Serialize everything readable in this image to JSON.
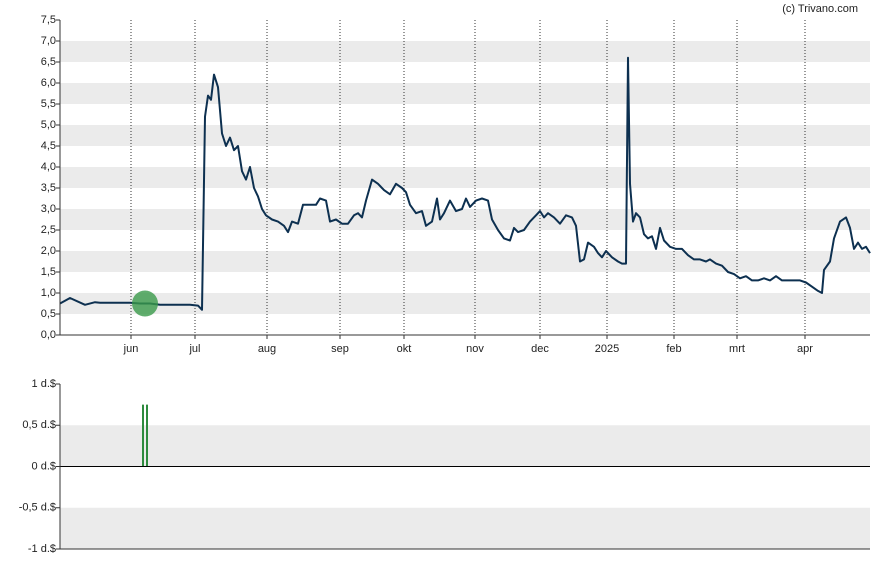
{
  "credit": "(c) Trivano.com",
  "chart_data": [
    {
      "type": "line",
      "xlim": [
        0,
        405
      ],
      "xticks": [
        {
          "value": 35.5,
          "label": "jun"
        },
        {
          "value": 67.5,
          "label": "jul"
        },
        {
          "value": 103.5,
          "label": "aug"
        },
        {
          "value": 140,
          "label": "sep"
        },
        {
          "value": 172,
          "label": "okt"
        },
        {
          "value": 207.5,
          "label": "nov"
        },
        {
          "value": 240,
          "label": "dec"
        },
        {
          "value": 273.5,
          "label": "2025"
        },
        {
          "value": 307,
          "label": "feb"
        },
        {
          "value": 338.5,
          "label": "mrt"
        },
        {
          "value": 372.5,
          "label": "apr"
        }
      ],
      "ylim": [
        0,
        7.5
      ],
      "yticks": [
        {
          "value": 0,
          "label": "0,0"
        },
        {
          "value": 0.5,
          "label": "0,5"
        },
        {
          "value": 1,
          "label": "1,0"
        },
        {
          "value": 1.5,
          "label": "1,5"
        },
        {
          "value": 2,
          "label": "2,0"
        },
        {
          "value": 2.5,
          "label": "2,5"
        },
        {
          "value": 3,
          "label": "3,0"
        },
        {
          "value": 3.5,
          "label": "3,5"
        },
        {
          "value": 4,
          "label": "4,0"
        },
        {
          "value": 4.5,
          "label": "4,5"
        },
        {
          "value": 5,
          "label": "5,0"
        },
        {
          "value": 5.5,
          "label": "5,5"
        },
        {
          "value": 6,
          "label": "6,0"
        },
        {
          "value": 6.5,
          "label": "6,5"
        },
        {
          "value": 7,
          "label": "7,0"
        },
        {
          "value": 7.5,
          "label": "7,5"
        }
      ],
      "grid": true,
      "x": [
        0,
        5,
        12.5,
        17.5,
        20,
        27.5,
        35,
        40,
        45,
        50,
        57.5,
        65,
        69,
        71,
        72.5,
        74,
        75.5,
        77,
        79,
        81,
        83,
        85,
        87,
        89,
        91,
        93,
        95,
        97,
        99,
        101,
        103,
        106,
        109,
        112,
        114,
        116,
        119,
        121.5,
        125,
        128,
        130,
        133,
        135,
        138,
        141,
        144,
        147,
        149,
        151,
        153,
        156,
        159,
        162,
        165,
        168,
        171,
        173,
        175,
        178,
        181,
        183,
        186,
        188.5,
        190,
        192,
        195,
        198,
        201,
        203,
        205,
        208,
        211,
        214,
        216,
        219,
        222,
        225,
        227,
        229,
        232,
        235,
        238,
        240,
        242,
        244,
        247,
        250,
        253,
        256,
        258,
        260,
        262,
        264,
        267,
        269,
        271,
        273,
        276,
        279,
        281,
        283,
        284,
        285,
        286.5,
        288,
        290,
        292,
        294,
        296,
        298,
        300,
        302,
        305,
        308,
        311,
        314,
        317,
        320,
        323,
        325,
        328,
        331,
        334,
        337,
        340,
        343,
        346,
        349,
        352,
        355,
        358,
        361,
        364,
        367,
        370,
        373,
        376,
        379,
        381,
        382,
        385,
        387,
        390,
        393,
        395,
        397,
        399,
        401,
        403,
        405
      ],
      "series": [
        {
          "color": "#0d3050",
          "values": [
            0.75,
            0.88,
            0.72,
            0.78,
            0.77,
            0.77,
            0.77,
            0.75,
            0.75,
            0.72,
            0.72,
            0.72,
            0.7,
            0.6,
            5.2,
            5.7,
            5.6,
            6.2,
            5.9,
            4.8,
            4.5,
            4.7,
            4.4,
            4.5,
            3.9,
            3.7,
            4.0,
            3.5,
            3.3,
            3.0,
            2.85,
            2.75,
            2.7,
            2.6,
            2.45,
            2.7,
            2.65,
            3.1,
            3.1,
            3.1,
            3.25,
            3.2,
            2.7,
            2.75,
            2.65,
            2.65,
            2.85,
            2.9,
            2.8,
            3.2,
            3.7,
            3.6,
            3.45,
            3.35,
            3.6,
            3.5,
            3.4,
            3.1,
            2.9,
            2.95,
            2.6,
            2.7,
            3.25,
            2.75,
            2.9,
            3.2,
            2.95,
            3.0,
            3.25,
            3.05,
            3.2,
            3.25,
            3.2,
            2.75,
            2.5,
            2.3,
            2.25,
            2.55,
            2.45,
            2.5,
            2.7,
            2.85,
            2.95,
            2.8,
            2.9,
            2.8,
            2.65,
            2.85,
            2.8,
            2.6,
            1.75,
            1.8,
            2.2,
            2.1,
            1.95,
            1.85,
            2.0,
            1.85,
            1.75,
            1.7,
            1.7,
            6.6,
            3.6,
            2.7,
            2.9,
            2.8,
            2.4,
            2.3,
            2.35,
            2.05,
            2.55,
            2.25,
            2.1,
            2.05,
            2.05,
            1.9,
            1.8,
            1.8,
            1.75,
            1.8,
            1.7,
            1.65,
            1.5,
            1.45,
            1.35,
            1.4,
            1.3,
            1.3,
            1.35,
            1.3,
            1.4,
            1.3,
            1.3,
            1.3,
            1.3,
            1.25,
            1.15,
            1.05,
            1.0,
            1.55,
            1.75,
            2.3,
            2.7,
            2.8,
            2.55,
            2.05,
            2.2,
            2.05,
            2.1,
            1.95
          ]
        }
      ],
      "markers": {
        "color": "#3a9a4a",
        "x": [
          42.5
        ],
        "values": [
          0.75
        ]
      }
    },
    {
      "type": "bar",
      "xlim": [
        0,
        405
      ],
      "ylim": [
        -1,
        1
      ],
      "yticks": [
        {
          "value": -1,
          "label": "-1 d.$"
        },
        {
          "value": -0.5,
          "label": "-0,5 d.$"
        },
        {
          "value": 0,
          "label": "0 d.$"
        },
        {
          "value": 0.5,
          "label": "0,5 d.$"
        },
        {
          "value": 1,
          "label": "1 d.$"
        }
      ],
      "grid": true,
      "color": "#2e8b3e",
      "x": [
        41.5,
        43.5
      ],
      "values": [
        0.75,
        0.75
      ]
    }
  ]
}
